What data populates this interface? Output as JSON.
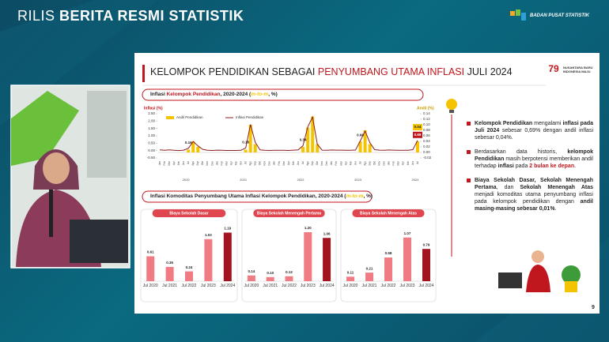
{
  "header": {
    "title_light": "RILIS",
    "title_bold": "BERITA RESMI STATISTIK",
    "logo_text": "BADAN PUSAT STATISTIK"
  },
  "slide": {
    "title": [
      {
        "text": "KELOMPOK PENDIDIKAN SEBAGAI ",
        "style": "normal"
      },
      {
        "text": "PENYUMBANG UTAMA INFLASI",
        "style": "red"
      },
      {
        "text": " JULI 2024",
        "style": "normal"
      }
    ],
    "badge_number": "79",
    "badge_text": "NUSANTARA BARU INDONESIA MAJU",
    "group_title": [
      {
        "text": "Inflasi Komoditas Penyumbang Utama Inflasi Kelompok Pendidikan, 2020-2024 (",
        "style": "normal"
      },
      {
        "text": "m-to-m",
        "style": "italic"
      },
      {
        "text": ", %)",
        "style": "normal"
      }
    ],
    "bullets": [
      [
        {
          "text": "Kelompok Pendidikan",
          "style": "bold"
        },
        {
          "text": " mengalami ",
          "style": "normal"
        },
        {
          "text": "inflasi pada Juli 2024",
          "style": "bold"
        },
        {
          "text": " sebesar 0,69% dengan andil inflasi sebesar 0,04%.",
          "style": "normal"
        }
      ],
      [
        {
          "text": "Berdasarkan data historis, ",
          "style": "normal"
        },
        {
          "text": "kelompok Pendidikan",
          "style": "bold"
        },
        {
          "text": " masih berpotensi memberikan andil terhadap ",
          "style": "normal"
        },
        {
          "text": "inflasi",
          "style": "bold"
        },
        {
          "text": " pada ",
          "style": "normal"
        },
        {
          "text": "2 bulan ke depan",
          "style": "bold-red"
        },
        {
          "text": ".",
          "style": "normal"
        }
      ],
      [
        {
          "text": "Biaya Sekolah Dasar, Sekolah Menengah Pertama",
          "style": "bold"
        },
        {
          "text": ", dan ",
          "style": "normal"
        },
        {
          "text": "Sekolah Menengah Atas",
          "style": "bold"
        },
        {
          "text": " menjadi komoditas utama penyumbang inflasi pada kelompok pendidikan dengan ",
          "style": "normal"
        },
        {
          "text": "andil masing-masing sebesar 0,01%",
          "style": "bold"
        },
        {
          "text": ".",
          "style": "normal"
        }
      ]
    ],
    "page_number": "9"
  },
  "chart_data": [
    {
      "type": "combo",
      "title": [
        {
          "text": "Inflasi ",
          "style": "normal"
        },
        {
          "text": "Kelompok Pendidikan",
          "style": "red"
        },
        {
          "text": ", 2020-2024 (",
          "style": "normal"
        },
        {
          "text": "m-to-m",
          "style": "italic"
        },
        {
          "text": ", %)",
          "style": "normal"
        }
      ],
      "y_label": "Inflasi (%)",
      "y2_label": "Andil (%)",
      "categories": [
        "Jan",
        "Feb",
        "Mar",
        "Apr",
        "Mei",
        "Jun",
        "Jul",
        "Agu",
        "Sep",
        "Okt",
        "Nov",
        "Des",
        "Jan",
        "Feb",
        "Mar",
        "Apr",
        "Mei",
        "Jun",
        "Jul",
        "Agu",
        "Sep",
        "Okt",
        "Nov",
        "Des",
        "Jan",
        "Feb",
        "Mar",
        "Apr",
        "Mei",
        "Jun",
        "Jul",
        "Agu",
        "Sep",
        "Okt",
        "Nov",
        "Des",
        "Jan",
        "Feb",
        "Mar",
        "Apr",
        "Mei",
        "Jun",
        "Jul",
        "Agu",
        "Sep",
        "Okt",
        "Nov",
        "Des",
        "Jan",
        "Feb",
        "Mar",
        "Apr",
        "Mei",
        "Jun",
        "Jul"
      ],
      "years": [
        "2020",
        "2021",
        "2022",
        "2023",
        "2024"
      ],
      "ylim": [
        -0.5,
        2.5
      ],
      "yticks": [
        {
          "value": -0.5,
          "label": "-0.50"
        },
        {
          "value": 0,
          "label": "0.00"
        },
        {
          "value": 0.5,
          "label": "0.50"
        },
        {
          "value": 1,
          "label": "1.00"
        },
        {
          "value": 1.5,
          "label": "1.50"
        },
        {
          "value": 2,
          "label": "2.00"
        },
        {
          "value": 2.5,
          "label": "2.50"
        }
      ],
      "y2lim": [
        -0.02,
        0.14
      ],
      "y2ticks": [
        {
          "value": -0.02,
          "label": "-0.02"
        },
        {
          "value": 0,
          "label": "0.00"
        },
        0.02,
        0.04,
        0.06,
        {
          "value": 0.08,
          "label": "0.08"
        },
        {
          "value": 0.1,
          "label": "0.10"
        },
        0.12,
        0.14
      ],
      "series": [
        {
          "name": "Andil Pendidikan",
          "type": "bar",
          "axis": "y2",
          "color": "#f5c400",
          "values": [
            0,
            0,
            0,
            0,
            0,
            0,
            0.01,
            0.04,
            0.02,
            0,
            0,
            0,
            0,
            0,
            0,
            0,
            0,
            0,
            0.01,
            0.1,
            0.03,
            0,
            0,
            0,
            0,
            0,
            0,
            0,
            0,
            0,
            0.02,
            0.09,
            0.13,
            0.03,
            0,
            0,
            0,
            0,
            0,
            0,
            0,
            0,
            0.04,
            0.08,
            0.03,
            0,
            0,
            0,
            0,
            0,
            0,
            0,
            0,
            0,
            0.04
          ],
          "value_labels": [
            null,
            null,
            null,
            null,
            null,
            null,
            null,
            null,
            null,
            null,
            null,
            null,
            null,
            null,
            null,
            null,
            null,
            null,
            null,
            null,
            null,
            null,
            null,
            null,
            null,
            null,
            null,
            null,
            null,
            null,
            null,
            null,
            null,
            null,
            null,
            null,
            null,
            null,
            null,
            null,
            null,
            null,
            null,
            null,
            null,
            null,
            null,
            null,
            null,
            null,
            null,
            null,
            null,
            null,
            "0.04"
          ]
        },
        {
          "name": "Inflasi Pendidikan",
          "type": "line",
          "color": "#8c1c1c",
          "values": [
            0.05,
            0.02,
            0.05,
            0.02,
            0,
            0.03,
            0.16,
            0.62,
            0.32,
            0.08,
            0.02,
            0.01,
            0.03,
            0.02,
            0.01,
            0.01,
            0.01,
            0.02,
            0.18,
            1.77,
            0.56,
            0.05,
            0.02,
            0.01,
            0.02,
            0.02,
            0.02,
            0.01,
            0.03,
            0.05,
            0.34,
            1.61,
            2.28,
            0.43,
            0.03,
            0.02,
            0.04,
            0.03,
            0.03,
            0.02,
            0.02,
            0.04,
            0.66,
            1.33,
            0.54,
            0.06,
            0.03,
            0.02,
            0.04,
            0.03,
            0.02,
            0.02,
            0.02,
            0.06,
            0.69
          ],
          "value_labels": [
            null,
            null,
            null,
            null,
            null,
            null,
            "0.16",
            null,
            null,
            null,
            null,
            null,
            null,
            null,
            null,
            null,
            null,
            null,
            "0.18",
            null,
            null,
            null,
            null,
            null,
            null,
            null,
            null,
            null,
            null,
            null,
            "0.34",
            null,
            null,
            null,
            null,
            null,
            null,
            null,
            null,
            null,
            null,
            null,
            "0.66",
            null,
            null,
            null,
            null,
            null,
            null,
            null,
            null,
            null,
            null,
            null,
            "0.69"
          ]
        }
      ]
    },
    {
      "type": "bar",
      "title": "Biaya Sekolah Dasar",
      "categories": [
        "Jul 2020",
        "Jul 2021",
        "Jul 2022",
        "Jul 2023",
        "Jul 2024"
      ],
      "values": [
        0.61,
        0.35,
        0.24,
        1.03,
        1.19
      ],
      "value_labels": [
        "0.61",
        "0.35",
        "0.24",
        "1.03",
        "1.19"
      ],
      "colors": [
        "#f07b83",
        "#f07b83",
        "#f07b83",
        "#f07b83",
        "#a3141e"
      ]
    },
    {
      "type": "bar",
      "title": "Biaya Sekolah Menengah Pertama",
      "categories": [
        "Jul 2020",
        "Jul 2021",
        "Jul 2022",
        "Jul 2023",
        "Jul 2024"
      ],
      "values": [
        0.14,
        0.1,
        0.12,
        1.2,
        1.06
      ],
      "value_labels": [
        "0.14",
        "0.10",
        "0.12",
        "1.20",
        "1.06"
      ],
      "colors": [
        "#f07b83",
        "#f07b83",
        "#f07b83",
        "#f07b83",
        "#a3141e"
      ]
    },
    {
      "type": "bar",
      "title": "Biaya Sekolah Menengah Atas",
      "categories": [
        "Jul 2020",
        "Jul 2021",
        "Jul 2022",
        "Jul 2023",
        "Jul 2024"
      ],
      "values": [
        0.11,
        0.21,
        0.58,
        1.07,
        0.79
      ],
      "value_labels": [
        "0.11",
        "0.21",
        "0.58",
        "1.07",
        "0.79"
      ],
      "colors": [
        "#f07b83",
        "#f07b83",
        "#f07b83",
        "#f07b83",
        "#a3141e"
      ]
    }
  ]
}
